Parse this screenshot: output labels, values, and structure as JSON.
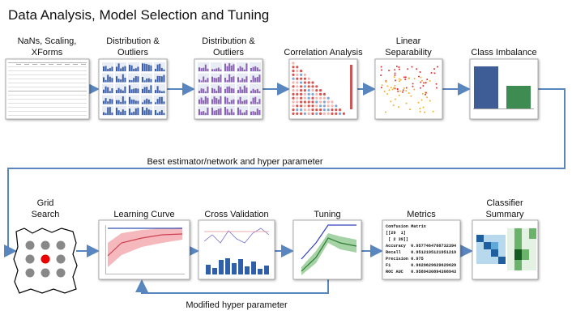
{
  "title": "Data Analysis, Model Selection and Tuning",
  "top_row": [
    {
      "label_lines": [
        "NaNs, Scaling,",
        "XForms"
      ]
    },
    {
      "label_lines": [
        "Distribution &",
        "Outliers"
      ]
    },
    {
      "label_lines": [
        "Distribution &",
        "Outliers"
      ]
    },
    {
      "label_lines": [
        "Correlation Analysis"
      ]
    },
    {
      "label_lines": [
        "Linear",
        "Separability"
      ]
    },
    {
      "label_lines": [
        "Class Imbalance"
      ]
    }
  ],
  "bottom_row": [
    {
      "label_lines": [
        "Grid",
        "Search"
      ]
    },
    {
      "label_lines": [
        "Learning Curve"
      ]
    },
    {
      "label_lines": [
        "Cross Validation"
      ]
    },
    {
      "label_lines": [
        "Tuning"
      ]
    },
    {
      "label_lines": [
        "Metrics"
      ]
    },
    {
      "label_lines": [
        "Classifier",
        "Summary"
      ]
    }
  ],
  "edges": {
    "feedforward": "Best estimator/network and hyper parameter",
    "feedback": "Modified hyper parameter"
  },
  "metrics_box": [
    "Confusion Matrix",
    "[[29  1]",
    " [ 2 39]]",
    "Accuracy  0.9577464788732394",
    "Recall    0.9512195121951219",
    "Precision 0.975",
    "F1        0.9629629629629629",
    "ROC AUC   0.9589430894308943"
  ]
}
